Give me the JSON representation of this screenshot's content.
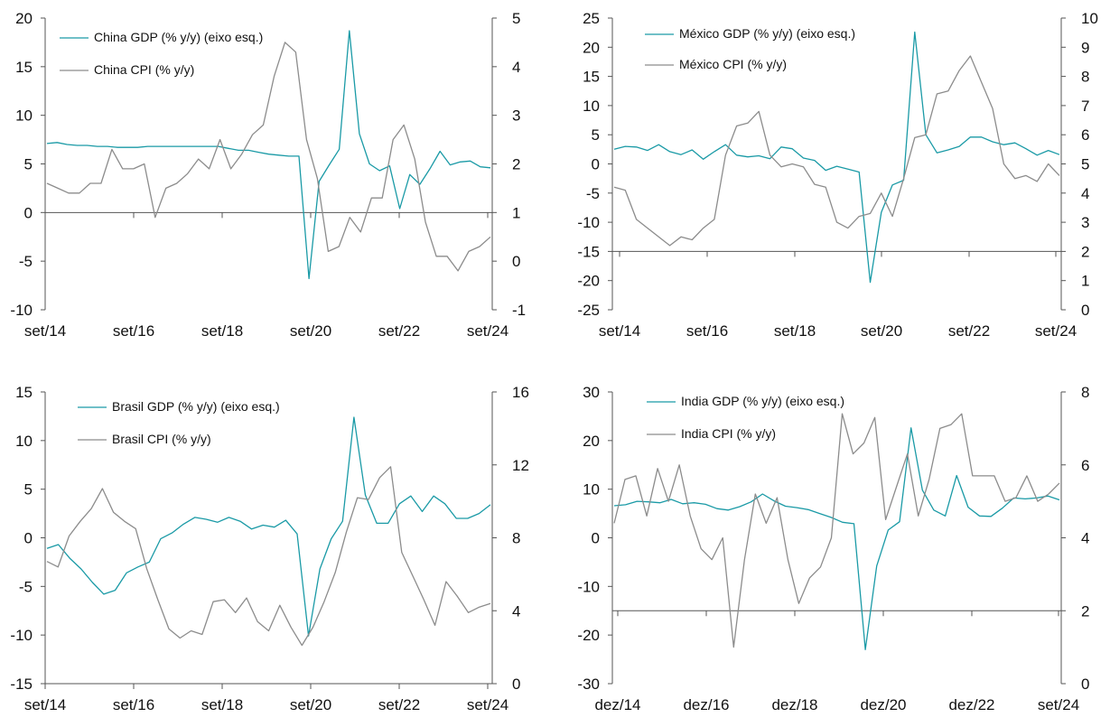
{
  "colors": {
    "gdp": "#1a9aa6",
    "cpi": "#8c8c8c",
    "axis": "#555555"
  },
  "chart_data": [
    {
      "type": "line",
      "id": "china",
      "grid": false,
      "legend_position": "top-left",
      "x_tick_labels": [
        "set/14",
        "set/16",
        "set/18",
        "set/20",
        "set/22",
        "set/24"
      ],
      "ylim_left": [
        -10,
        20
      ],
      "yticks_left": [
        "-10",
        "-5",
        "0",
        "5",
        "10",
        "15",
        "20"
      ],
      "ylim_right": [
        -1,
        5
      ],
      "yticks_right": [
        "-1",
        "0",
        "1",
        "2",
        "3",
        "4",
        "5"
      ],
      "series": [
        {
          "name": "China GDP (% y/y) (eixo esq.)",
          "axis": "left",
          "color": "gdp",
          "values": [
            7.1,
            7.2,
            7.0,
            6.9,
            6.9,
            6.8,
            6.8,
            6.7,
            6.7,
            6.7,
            6.8,
            6.8,
            6.8,
            6.8,
            6.8,
            6.8,
            6.8,
            6.8,
            6.6,
            6.4,
            6.4,
            6.2,
            6.0,
            5.9,
            5.8,
            5.8,
            -6.8,
            3.2,
            4.9,
            6.5,
            18.7,
            8.1,
            5.0,
            4.3,
            4.8,
            0.4,
            3.9,
            2.9,
            4.5,
            6.3,
            4.9,
            5.2,
            5.3,
            4.7,
            4.6
          ]
        },
        {
          "name": "China CPI (% y/y)",
          "axis": "right",
          "color": "cpi",
          "values": [
            1.6,
            1.5,
            1.4,
            1.4,
            1.6,
            1.6,
            2.3,
            1.9,
            1.9,
            2.0,
            0.9,
            1.5,
            1.6,
            1.8,
            2.1,
            1.9,
            2.5,
            1.9,
            2.2,
            2.6,
            2.8,
            3.8,
            4.5,
            4.3,
            2.5,
            1.7,
            0.2,
            0.3,
            0.9,
            0.6,
            1.3,
            1.3,
            2.5,
            2.8,
            2.1,
            0.8,
            0.1,
            0.1,
            -0.2,
            0.2,
            0.3,
            0.5
          ]
        }
      ]
    },
    {
      "type": "line",
      "id": "mexico",
      "grid": false,
      "legend_position": "top-left",
      "x_tick_labels": [
        "set/14",
        "set/16",
        "set/18",
        "set/20",
        "set/22",
        "set/24"
      ],
      "ylim_left": [
        -25,
        25
      ],
      "yticks_left": [
        "-25",
        "-20",
        "-15",
        "-10",
        "-5",
        "0",
        "5",
        "10",
        "15",
        "20",
        "25"
      ],
      "ylim_right": [
        0,
        10
      ],
      "yticks_right": [
        "0",
        "1",
        "2",
        "3",
        "4",
        "5",
        "6",
        "7",
        "8",
        "9",
        "10"
      ],
      "series": [
        {
          "name": "México GDP (% y/y) (eixo esq.)",
          "axis": "left",
          "color": "gdp",
          "values": [
            2.5,
            3.0,
            2.9,
            2.3,
            3.3,
            2.1,
            1.6,
            2.4,
            0.8,
            2.1,
            3.3,
            1.5,
            1.2,
            1.4,
            0.9,
            2.9,
            2.6,
            1.0,
            0.6,
            -1.1,
            -0.4,
            -0.9,
            -1.4,
            -20.3,
            -8.3,
            -3.6,
            -2.8,
            22.6,
            5.0,
            1.9,
            2.4,
            3.0,
            4.6,
            4.6,
            3.8,
            3.3,
            3.6,
            2.6,
            1.5,
            2.3,
            1.6
          ]
        },
        {
          "name": "México CPI (% y/y)",
          "axis": "right",
          "color": "cpi",
          "values": [
            4.2,
            4.1,
            3.1,
            2.8,
            2.5,
            2.2,
            2.5,
            2.4,
            2.8,
            3.1,
            5.3,
            6.3,
            6.4,
            6.8,
            5.3,
            4.9,
            5.0,
            4.9,
            4.3,
            4.2,
            3.0,
            2.8,
            3.2,
            3.3,
            4.0,
            3.2,
            4.5,
            5.9,
            6.0,
            7.4,
            7.5,
            8.2,
            8.7,
            7.8,
            6.9,
            5.0,
            4.5,
            4.6,
            4.4,
            5.0,
            4.6
          ]
        }
      ]
    },
    {
      "type": "line",
      "id": "brasil",
      "grid": false,
      "legend_position": "top-left",
      "x_tick_labels": [
        "set/14",
        "set/16",
        "set/18",
        "set/20",
        "set/22",
        "set/24"
      ],
      "ylim_left": [
        -15,
        15
      ],
      "yticks_left": [
        "-15",
        "-10",
        "-5",
        "0",
        "5",
        "10",
        "15"
      ],
      "ylim_right": [
        0,
        16
      ],
      "yticks_right": [
        "0",
        "4",
        "8",
        "12",
        "16"
      ],
      "series": [
        {
          "name": "Brasil GDP (% y/y) (eixo esq.)",
          "axis": "left",
          "color": "gdp",
          "values": [
            -1.1,
            -0.7,
            -2.1,
            -3.2,
            -4.6,
            -5.8,
            -5.4,
            -3.6,
            -3.0,
            -2.5,
            -0.1,
            0.5,
            1.4,
            2.1,
            1.9,
            1.6,
            2.1,
            1.7,
            0.9,
            1.3,
            1.1,
            1.8,
            0.4,
            -10.1,
            -3.2,
            -0.1,
            1.7,
            12.4,
            4.4,
            1.5,
            1.5,
            3.5,
            4.3,
            2.7,
            4.3,
            3.5,
            2.0,
            2.0,
            2.5,
            3.4
          ]
        },
        {
          "name": "Brasil CPI (% y/y)",
          "axis": "right",
          "color": "cpi",
          "values": [
            6.7,
            6.4,
            8.1,
            8.9,
            9.6,
            10.7,
            9.4,
            8.9,
            8.5,
            6.3,
            4.6,
            3.0,
            2.5,
            2.9,
            2.7,
            4.5,
            4.6,
            3.9,
            4.7,
            3.4,
            2.9,
            4.3,
            3.1,
            2.1,
            3.1,
            4.5,
            6.1,
            8.3,
            10.2,
            10.1,
            11.3,
            11.9,
            7.2,
            5.9,
            4.6,
            3.2,
            5.6,
            4.8,
            3.9,
            4.2,
            4.4
          ]
        }
      ]
    },
    {
      "type": "line",
      "id": "india",
      "grid": false,
      "legend_position": "top-left",
      "x_tick_labels": [
        "dez/14",
        "dez/16",
        "dez/18",
        "dez/20",
        "dez/22",
        "set/24"
      ],
      "ylim_left": [
        -30,
        30
      ],
      "yticks_left": [
        "-30",
        "-20",
        "-10",
        "0",
        "10",
        "20",
        "30"
      ],
      "ylim_right": [
        0,
        8
      ],
      "yticks_right": [
        "0",
        "2",
        "4",
        "6",
        "8"
      ],
      "series": [
        {
          "name": "India GDP (% y/y) (eixo esq.)",
          "axis": "left",
          "color": "gdp",
          "values": [
            6.6,
            6.8,
            7.5,
            7.4,
            7.2,
            7.9,
            7.0,
            7.2,
            6.9,
            6.0,
            5.7,
            6.4,
            7.4,
            9.0,
            7.6,
            6.5,
            6.2,
            5.8,
            5.0,
            4.2,
            3.2,
            2.9,
            -23.0,
            -5.8,
            1.6,
            3.3,
            22.6,
            9.8,
            5.7,
            4.5,
            12.8,
            6.3,
            4.5,
            4.4,
            6.1,
            8.2,
            8.0,
            8.2,
            8.6,
            7.8
          ]
        },
        {
          "name": "India CPI (% y/y)",
          "axis": "right",
          "color": "cpi",
          "values": [
            4.4,
            5.6,
            5.7,
            4.6,
            5.9,
            5.0,
            6.0,
            4.6,
            3.7,
            3.4,
            4.0,
            1.0,
            3.4,
            5.2,
            4.4,
            5.1,
            3.4,
            2.2,
            2.9,
            3.2,
            4.0,
            7.4,
            6.3,
            6.6,
            7.3,
            4.5,
            5.4,
            6.3,
            4.6,
            5.6,
            7.0,
            7.1,
            7.4,
            5.7,
            5.7,
            5.7,
            5.0,
            5.1,
            5.7,
            5.0,
            5.2,
            5.5
          ]
        }
      ]
    }
  ]
}
